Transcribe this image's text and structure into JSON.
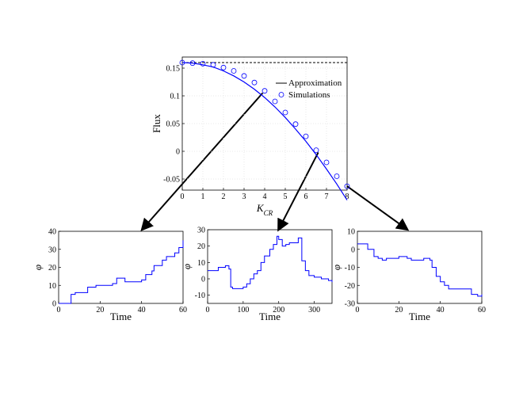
{
  "chart_data": [
    {
      "id": "main",
      "type": "line",
      "xlabel": "K",
      "xlabel_sub": "CR",
      "ylabel": "Flux",
      "xlim": [
        0,
        8
      ],
      "ylim": [
        -0.07,
        0.17
      ],
      "xticks": [
        "0",
        "1",
        "2",
        "3",
        "4",
        "5",
        "6",
        "7",
        "8"
      ],
      "yticks": [
        "-0.05",
        "0",
        "0.05",
        "0.1",
        "0.15"
      ],
      "reference_line": {
        "y": 0.16,
        "style": "dashed"
      },
      "grid": true,
      "legend_position": "right",
      "series": [
        {
          "name": "Approximation",
          "style": "solid",
          "color": "#0000ff",
          "x": [
            0,
            0.5,
            1,
            1.5,
            2,
            2.5,
            3,
            3.5,
            4,
            4.5,
            5,
            5.5,
            6,
            6.5,
            7,
            7.5,
            8
          ],
          "y": [
            0.16,
            0.159,
            0.156,
            0.152,
            0.145,
            0.136,
            0.125,
            0.112,
            0.097,
            0.08,
            0.061,
            0.04,
            0.018,
            -0.006,
            -0.032,
            -0.059,
            -0.088
          ]
        },
        {
          "name": "Simulations",
          "style": "circle",
          "color": "#0000ff",
          "x": [
            0,
            0.5,
            1,
            1.5,
            2,
            2.5,
            3,
            3.5,
            4,
            4.5,
            5,
            5.5,
            6,
            6.5,
            7,
            7.5,
            8
          ],
          "y": [
            0.16,
            0.159,
            0.158,
            0.156,
            0.151,
            0.145,
            0.136,
            0.124,
            0.109,
            0.09,
            0.07,
            0.049,
            0.027,
            0.002,
            -0.02,
            -0.045,
            -0.063
          ]
        }
      ],
      "arrows": [
        {
          "from_x": 3.9,
          "from_y": 0.105,
          "to": "left"
        },
        {
          "from_x": 6.6,
          "from_y": -0.002,
          "to": "middle"
        },
        {
          "from_x": 8.0,
          "from_y": -0.063,
          "to": "right"
        }
      ]
    },
    {
      "id": "left",
      "type": "line",
      "xlabel": "Time",
      "ylabel": "φ",
      "xlim": [
        0,
        60
      ],
      "ylim": [
        0,
        40
      ],
      "xticks": [
        "0",
        "20",
        "40",
        "60"
      ],
      "yticks": [
        "0",
        "10",
        "20",
        "30",
        "40"
      ],
      "series": [
        {
          "color": "#0000ff",
          "x": [
            0,
            4,
            6,
            8,
            14,
            18,
            24,
            26,
            28,
            31,
            32,
            36,
            40,
            42,
            45,
            46,
            48,
            50,
            52,
            55,
            56,
            58,
            60
          ],
          "y": [
            0,
            0,
            5,
            6,
            9,
            10,
            10,
            11,
            14,
            14,
            12,
            12,
            13,
            16,
            18,
            21,
            21,
            24,
            26,
            26,
            28,
            31,
            35
          ]
        }
      ]
    },
    {
      "id": "middle",
      "type": "line",
      "xlabel": "Time",
      "ylabel": "φ",
      "xlim": [
        0,
        350
      ],
      "ylim": [
        -15,
        30
      ],
      "xticks": [
        "0",
        "100",
        "200",
        "300"
      ],
      "yticks": [
        "-10",
        "0",
        "10",
        "20",
        "30"
      ],
      "series": [
        {
          "color": "#0000ff",
          "x": [
            0,
            10,
            30,
            50,
            60,
            65,
            70,
            90,
            100,
            110,
            120,
            130,
            140,
            150,
            160,
            175,
            185,
            195,
            200,
            210,
            220,
            230,
            240,
            255,
            265,
            275,
            285,
            300,
            320,
            340,
            350
          ],
          "y": [
            5,
            5,
            7,
            8,
            6,
            -5,
            -6,
            -6,
            -5,
            -3,
            0,
            3,
            5,
            10,
            14,
            18,
            21,
            26,
            24,
            20,
            21,
            22,
            22,
            25,
            11,
            5,
            2,
            1,
            0,
            -1,
            -2
          ]
        }
      ]
    },
    {
      "id": "right",
      "type": "line",
      "xlabel": "Time",
      "ylabel": "φ",
      "xlim": [
        0,
        60
      ],
      "ylim": [
        -30,
        10
      ],
      "xticks": [
        "0",
        "20",
        "40",
        "60"
      ],
      "yticks": [
        "-30",
        "-20",
        "-10",
        "0",
        "10"
      ],
      "series": [
        {
          "color": "#0000ff",
          "x": [
            0,
            4,
            5,
            8,
            10,
            12,
            14,
            16,
            18,
            20,
            22,
            24,
            26,
            28,
            30,
            32,
            35,
            36,
            38,
            40,
            42,
            44,
            46,
            50,
            54,
            55,
            58,
            60
          ],
          "y": [
            3,
            3,
            0,
            -4,
            -5,
            -6,
            -5,
            -5,
            -5,
            -4,
            -4,
            -5,
            -6,
            -6,
            -6,
            -5,
            -6,
            -10,
            -15,
            -18,
            -20,
            -22,
            -22,
            -22,
            -22,
            -25,
            -26,
            -25
          ]
        }
      ]
    }
  ]
}
